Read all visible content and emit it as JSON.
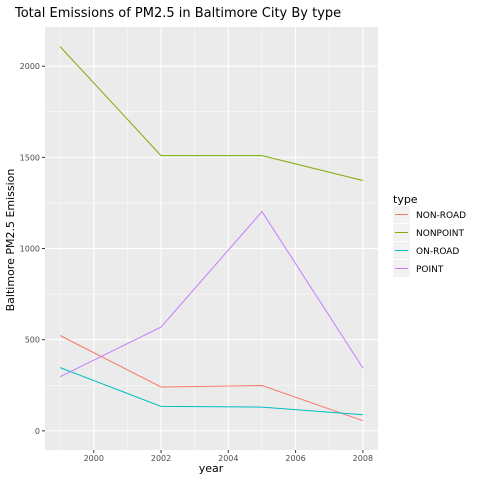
{
  "chart_data": {
    "type": "line",
    "title": "Total Emissions of PM2.5 in Baltimore City By type",
    "xlabel": "year",
    "ylabel": "Baltimore PM2.5 Emission",
    "x": [
      1999,
      2002,
      2005,
      2008
    ],
    "xticks": [
      2000,
      2002,
      2004,
      2006,
      2008
    ],
    "xlim": [
      1998.55,
      2008.45
    ],
    "yticks": [
      0,
      500,
      1000,
      1500,
      2000
    ],
    "ylim": [
      -105,
      2215
    ],
    "grid": true,
    "legend": {
      "title": "type",
      "placement": "right"
    },
    "series": [
      {
        "name": "NON-ROAD",
        "color": "#F8766D",
        "values": [
          522.9,
          240.8,
          248.9,
          55.8
        ]
      },
      {
        "name": "NONPOINT",
        "color": "#7CAE00",
        "values": [
          2107.6,
          1509.5,
          1509.5,
          1373.2
        ]
      },
      {
        "name": "ON-ROAD",
        "color": "#00BFC4",
        "values": [
          346.8,
          134.3,
          130.4,
          88.3
        ]
      },
      {
        "name": "POINT",
        "color": "#C77CFF",
        "values": [
          296.8,
          569.3,
          1202.5,
          345.0
        ]
      }
    ]
  }
}
